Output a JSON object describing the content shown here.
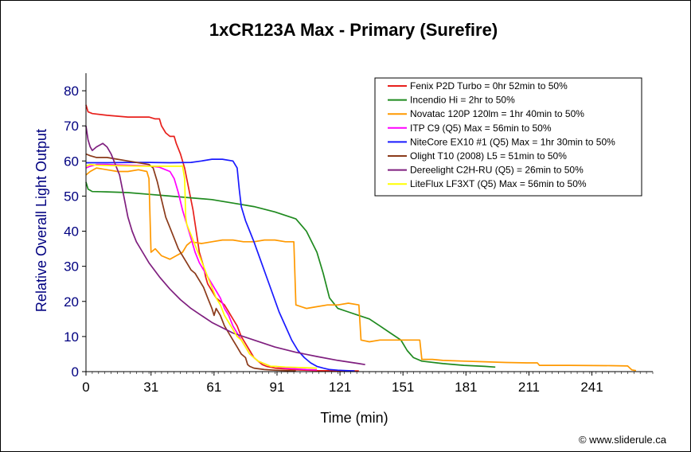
{
  "chart_data": {
    "type": "line",
    "title": "1xCR123A Max - Primary (Surefire)",
    "xlabel": "Time (min)",
    "ylabel": "Relative Overall Light Output",
    "xlim": [
      0,
      270
    ],
    "ylim": [
      0,
      85
    ],
    "xticks": [
      0,
      31,
      61,
      91,
      121,
      151,
      181,
      211,
      241
    ],
    "yticks": [
      0,
      10,
      20,
      30,
      40,
      50,
      60,
      70,
      80
    ],
    "grid": false,
    "legend_position": "top-right",
    "credit": "© www.sliderule.ca",
    "series": [
      {
        "name": "Fenix P2D Turbo = 0hr 52min to 50%",
        "color": "#e8201c",
        "points": [
          [
            0,
            76
          ],
          [
            1,
            74
          ],
          [
            3,
            73.5
          ],
          [
            10,
            73
          ],
          [
            20,
            72.5
          ],
          [
            30,
            72.5
          ],
          [
            33,
            72
          ],
          [
            35,
            72
          ],
          [
            36,
            70
          ],
          [
            38,
            68
          ],
          [
            40,
            67
          ],
          [
            42,
            67
          ],
          [
            43,
            65
          ],
          [
            45,
            62
          ],
          [
            47,
            58
          ],
          [
            49,
            52
          ],
          [
            51,
            46
          ],
          [
            53,
            38
          ],
          [
            54,
            34
          ],
          [
            56,
            30
          ],
          [
            57,
            27
          ],
          [
            58,
            25
          ],
          [
            60,
            23
          ],
          [
            62,
            21
          ],
          [
            64,
            20
          ],
          [
            66,
            19
          ],
          [
            68,
            17
          ],
          [
            70,
            15
          ],
          [
            72,
            13
          ],
          [
            74,
            10
          ],
          [
            76,
            8
          ],
          [
            78,
            6
          ],
          [
            80,
            4
          ],
          [
            82,
            3
          ],
          [
            84,
            2
          ],
          [
            86,
            1.5
          ],
          [
            90,
            1
          ],
          [
            100,
            0.5
          ],
          [
            110,
            0.3
          ],
          [
            125,
            0.2
          ],
          [
            130,
            0.2
          ]
        ]
      },
      {
        "name": "Incendio Hi = 2hr to 50%",
        "color": "#1f8a1f",
        "points": [
          [
            0,
            54
          ],
          [
            1,
            52
          ],
          [
            3,
            51.3
          ],
          [
            10,
            51.2
          ],
          [
            20,
            51
          ],
          [
            30,
            50.5
          ],
          [
            40,
            50
          ],
          [
            50,
            49.5
          ],
          [
            60,
            49
          ],
          [
            70,
            48
          ],
          [
            80,
            47
          ],
          [
            90,
            45.5
          ],
          [
            100,
            43.5
          ],
          [
            105,
            40
          ],
          [
            110,
            34
          ],
          [
            113,
            28
          ],
          [
            116,
            21
          ],
          [
            120,
            18
          ],
          [
            125,
            17
          ],
          [
            130,
            16
          ],
          [
            135,
            15
          ],
          [
            140,
            13
          ],
          [
            145,
            11
          ],
          [
            150,
            9
          ],
          [
            153,
            6
          ],
          [
            156,
            4
          ],
          [
            160,
            3
          ],
          [
            170,
            2.3
          ],
          [
            180,
            1.8
          ],
          [
            190,
            1.5
          ],
          [
            195,
            1.3
          ]
        ]
      },
      {
        "name": "Novatac 120P 120lm = 1hr 40min to 50%",
        "color": "#ff9900",
        "points": [
          [
            0,
            56
          ],
          [
            2,
            57
          ],
          [
            5,
            58
          ],
          [
            10,
            57.5
          ],
          [
            15,
            57
          ],
          [
            20,
            57
          ],
          [
            25,
            57.5
          ],
          [
            29,
            57
          ],
          [
            30,
            55
          ],
          [
            31,
            34
          ],
          [
            33,
            35
          ],
          [
            36,
            33
          ],
          [
            40,
            32
          ],
          [
            43,
            33
          ],
          [
            46,
            34
          ],
          [
            48,
            36
          ],
          [
            50,
            37
          ],
          [
            55,
            36.5
          ],
          [
            60,
            37
          ],
          [
            65,
            37.5
          ],
          [
            70,
            37.5
          ],
          [
            75,
            37
          ],
          [
            80,
            37
          ],
          [
            85,
            37.5
          ],
          [
            90,
            37.5
          ],
          [
            95,
            37
          ],
          [
            99,
            37
          ],
          [
            100,
            19
          ],
          [
            105,
            18
          ],
          [
            110,
            18.5
          ],
          [
            115,
            19
          ],
          [
            120,
            19
          ],
          [
            125,
            19.5
          ],
          [
            130,
            19
          ],
          [
            131,
            9
          ],
          [
            135,
            8.5
          ],
          [
            140,
            9
          ],
          [
            145,
            9
          ],
          [
            150,
            9
          ],
          [
            155,
            9
          ],
          [
            159,
            9
          ],
          [
            160,
            3.5
          ],
          [
            165,
            3.5
          ],
          [
            170,
            3.2
          ],
          [
            180,
            3
          ],
          [
            190,
            2.8
          ],
          [
            200,
            2.6
          ],
          [
            210,
            2.5
          ],
          [
            215,
            2.5
          ],
          [
            216,
            1.8
          ],
          [
            230,
            1.8
          ],
          [
            250,
            1.7
          ],
          [
            258,
            1.6
          ],
          [
            260,
            0.5
          ],
          [
            262,
            0.3
          ]
        ]
      },
      {
        "name": "ITP C9 (Q5) Max = 56min to 50%",
        "color": "#ff00ff",
        "points": [
          [
            0,
            58
          ],
          [
            2,
            58.5
          ],
          [
            5,
            59
          ],
          [
            10,
            59
          ],
          [
            20,
            58.8
          ],
          [
            30,
            58.6
          ],
          [
            35,
            58.2
          ],
          [
            40,
            57
          ],
          [
            42,
            55
          ],
          [
            44,
            51
          ],
          [
            46,
            46
          ],
          [
            48,
            42
          ],
          [
            50,
            38
          ],
          [
            52,
            34
          ],
          [
            54,
            31
          ],
          [
            56,
            29
          ],
          [
            58,
            27
          ],
          [
            60,
            25
          ],
          [
            62,
            23
          ],
          [
            64,
            21
          ],
          [
            66,
            18
          ],
          [
            68,
            16
          ],
          [
            70,
            13
          ],
          [
            72,
            11
          ],
          [
            74,
            9
          ],
          [
            76,
            7
          ],
          [
            78,
            5
          ],
          [
            80,
            4
          ],
          [
            82,
            3
          ],
          [
            84,
            2.5
          ],
          [
            86,
            2
          ],
          [
            88,
            1.5
          ],
          [
            90,
            1.5
          ],
          [
            95,
            1
          ],
          [
            100,
            0.8
          ],
          [
            105,
            0.6
          ],
          [
            110,
            0.5
          ]
        ]
      },
      {
        "name": "NiteCore EX10 #1 (Q5) Max = 1hr 30min to 50%",
        "color": "#1a1aff",
        "points": [
          [
            0,
            59.5
          ],
          [
            5,
            59.5
          ],
          [
            10,
            59.5
          ],
          [
            20,
            59.6
          ],
          [
            30,
            59.6
          ],
          [
            40,
            59.5
          ],
          [
            50,
            59.6
          ],
          [
            55,
            60
          ],
          [
            60,
            60.5
          ],
          [
            65,
            60.5
          ],
          [
            70,
            60
          ],
          [
            72,
            58
          ],
          [
            73,
            52
          ],
          [
            74,
            47
          ],
          [
            76,
            43
          ],
          [
            78,
            40
          ],
          [
            80,
            37
          ],
          [
            83,
            32
          ],
          [
            86,
            27
          ],
          [
            89,
            22
          ],
          [
            92,
            17
          ],
          [
            95,
            13
          ],
          [
            98,
            9
          ],
          [
            101,
            6
          ],
          [
            104,
            4
          ],
          [
            107,
            2.5
          ],
          [
            110,
            1.5
          ],
          [
            113,
            1
          ],
          [
            116,
            0.6
          ],
          [
            120,
            0.4
          ],
          [
            124,
            0.3
          ],
          [
            128,
            0.2
          ]
        ]
      },
      {
        "name": "Olight T10 (2008) L5 = 51min to 50%",
        "color": "#8b3a1a",
        "points": [
          [
            0,
            62
          ],
          [
            2,
            61.5
          ],
          [
            5,
            61
          ],
          [
            10,
            61
          ],
          [
            15,
            60.5
          ],
          [
            20,
            60
          ],
          [
            25,
            59.5
          ],
          [
            30,
            59
          ],
          [
            32,
            58
          ],
          [
            34,
            54
          ],
          [
            36,
            49
          ],
          [
            38,
            44
          ],
          [
            40,
            41
          ],
          [
            42,
            38
          ],
          [
            44,
            35
          ],
          [
            46,
            33
          ],
          [
            48,
            31
          ],
          [
            50,
            29
          ],
          [
            52,
            28
          ],
          [
            54,
            26
          ],
          [
            56,
            24
          ],
          [
            58,
            21
          ],
          [
            60,
            18
          ],
          [
            61,
            16
          ],
          [
            62,
            18
          ],
          [
            64,
            16
          ],
          [
            66,
            13
          ],
          [
            68,
            11
          ],
          [
            70,
            9
          ],
          [
            72,
            7
          ],
          [
            74,
            5
          ],
          [
            76,
            4
          ],
          [
            77,
            2
          ],
          [
            78,
            1.5
          ],
          [
            80,
            1
          ],
          [
            85,
            0.6
          ],
          [
            90,
            0.4
          ],
          [
            95,
            0.3
          ],
          [
            100,
            0.2
          ]
        ]
      },
      {
        "name": "Dereelight C2H-RU (Q5) = 26min to 50%",
        "color": "#7f1f7f",
        "points": [
          [
            0,
            70
          ],
          [
            1,
            66
          ],
          [
            2,
            64
          ],
          [
            3,
            63
          ],
          [
            5,
            64
          ],
          [
            8,
            65
          ],
          [
            10,
            64
          ],
          [
            12,
            62
          ],
          [
            14,
            59
          ],
          [
            16,
            56
          ],
          [
            18,
            50
          ],
          [
            20,
            44
          ],
          [
            22,
            40
          ],
          [
            24,
            37
          ],
          [
            27,
            34
          ],
          [
            30,
            31
          ],
          [
            35,
            27
          ],
          [
            40,
            23.5
          ],
          [
            45,
            20.5
          ],
          [
            50,
            18
          ],
          [
            55,
            16
          ],
          [
            60,
            14
          ],
          [
            65,
            12.5
          ],
          [
            70,
            11
          ],
          [
            80,
            9
          ],
          [
            90,
            7
          ],
          [
            100,
            5.5
          ],
          [
            110,
            4.3
          ],
          [
            120,
            3.2
          ],
          [
            130,
            2.3
          ],
          [
            133,
            2
          ]
        ]
      },
      {
        "name": "LiteFlux LF3XT (Q5) Max = 56min to 50%",
        "color": "#ffff00",
        "points": [
          [
            0,
            58.5
          ],
          [
            2,
            59
          ],
          [
            5,
            58.8
          ],
          [
            10,
            58.7
          ],
          [
            20,
            58.6
          ],
          [
            30,
            58.5
          ],
          [
            40,
            58.5
          ],
          [
            45,
            58.5
          ],
          [
            46,
            58.6
          ],
          [
            47,
            55
          ],
          [
            47.5,
            44
          ],
          [
            48,
            42
          ],
          [
            50,
            39
          ],
          [
            52,
            36
          ],
          [
            54,
            33
          ],
          [
            56,
            30
          ],
          [
            58,
            27
          ],
          [
            60,
            24
          ],
          [
            62,
            21
          ],
          [
            64,
            19
          ],
          [
            66,
            16
          ],
          [
            68,
            14
          ],
          [
            70,
            12
          ],
          [
            72,
            10
          ],
          [
            74,
            9
          ],
          [
            76,
            7
          ],
          [
            78,
            5
          ],
          [
            80,
            4
          ],
          [
            82,
            3
          ],
          [
            84,
            2.5
          ],
          [
            86,
            2
          ],
          [
            88,
            1.5
          ],
          [
            90,
            1.5
          ],
          [
            95,
            1.3
          ],
          [
            100,
            1.2
          ],
          [
            105,
            1.1
          ],
          [
            110,
            1
          ]
        ]
      }
    ]
  }
}
